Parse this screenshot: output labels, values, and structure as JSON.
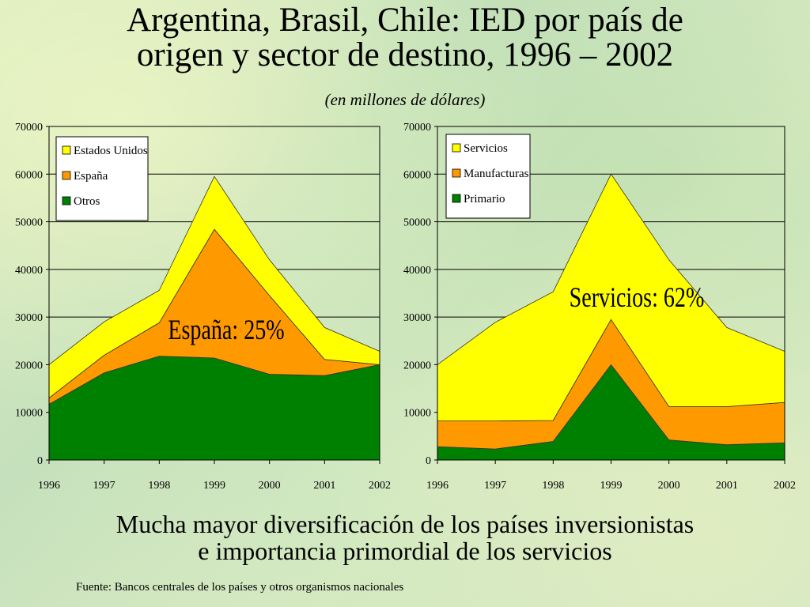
{
  "slide": {
    "title_line1": "Argentina, Brasil, Chile: IED por país de",
    "title_line2": "origen y sector de destino, 1996 – 2002",
    "subtitle": "(en millones de dólares)",
    "conclusion_line1": "Mucha mayor diversificación de los países inversionistas",
    "conclusion_line2": "e importancia primordial de los servicios",
    "source": "Fuente: Bancos centrales de los países y otros organismos nacionales"
  },
  "chart_data": [
    {
      "type": "area",
      "stacked": true,
      "x": [
        "1996",
        "1997",
        "1998",
        "1999",
        "2000",
        "2001",
        "2002"
      ],
      "ylim": [
        0,
        70000
      ],
      "yticks": [
        "0",
        "10000",
        "20000",
        "30000",
        "40000",
        "50000",
        "60000",
        "70000"
      ],
      "grid": true,
      "legend_position": "top-left",
      "series": [
        {
          "name": "Otros",
          "color": "#008000",
          "values": [
            11700,
            18300,
            21800,
            21400,
            18000,
            17700,
            20000
          ]
        },
        {
          "name": "España",
          "color": "#ff9900",
          "values": [
            1300,
            3700,
            7000,
            27000,
            16500,
            3400,
            0
          ]
        },
        {
          "name": "Estados Unidos",
          "color": "#ffff00",
          "values": [
            7000,
            7000,
            6800,
            11100,
            7500,
            6700,
            2800
          ]
        }
      ],
      "annotation": "España: 25%"
    },
    {
      "type": "area",
      "stacked": true,
      "x": [
        "1996",
        "1997",
        "1998",
        "1999",
        "2000",
        "2001",
        "2002"
      ],
      "ylim": [
        0,
        70000
      ],
      "yticks": [
        "0",
        "10000",
        "20000",
        "30000",
        "40000",
        "50000",
        "60000",
        "70000"
      ],
      "grid": true,
      "legend_position": "top-left",
      "series": [
        {
          "name": "Primario",
          "color": "#008000",
          "values": [
            2800,
            2300,
            3900,
            20000,
            4200,
            3200,
            3600
          ]
        },
        {
          "name": "Manufacturas",
          "color": "#ff9900",
          "values": [
            5400,
            5900,
            4400,
            9500,
            7000,
            8000,
            8500
          ]
        },
        {
          "name": "Servicios",
          "color": "#ffff00",
          "values": [
            11800,
            20700,
            27000,
            30500,
            30800,
            16600,
            10700
          ]
        }
      ],
      "annotation": "Servicios: 62%"
    }
  ]
}
